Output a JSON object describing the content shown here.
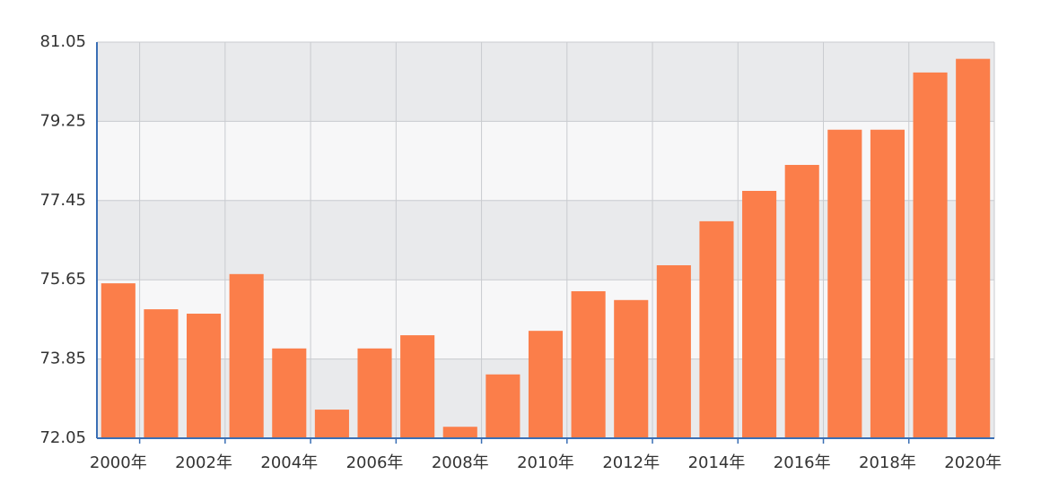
{
  "chart_data": {
    "type": "bar",
    "categories": [
      "2000年",
      null,
      "2002年",
      null,
      "2004年",
      null,
      "2006年",
      null,
      "2008年",
      null,
      "2010年",
      null,
      "2012年",
      null,
      "2014年",
      null,
      "2016年",
      null,
      "2018年",
      null,
      "2020年"
    ],
    "values": [
      75.57,
      74.98,
      74.88,
      75.78,
      74.09,
      72.7,
      74.09,
      74.39,
      72.31,
      73.5,
      74.49,
      75.39,
      75.19,
      75.98,
      76.98,
      77.67,
      78.26,
      79.06,
      79.06,
      80.36,
      80.67
    ],
    "color": "#fb7e4a",
    "ylim": [
      72.05,
      81.05
    ],
    "yticks": [
      72.05,
      73.85,
      75.65,
      77.45,
      79.25,
      81.05
    ],
    "grid": true
  }
}
